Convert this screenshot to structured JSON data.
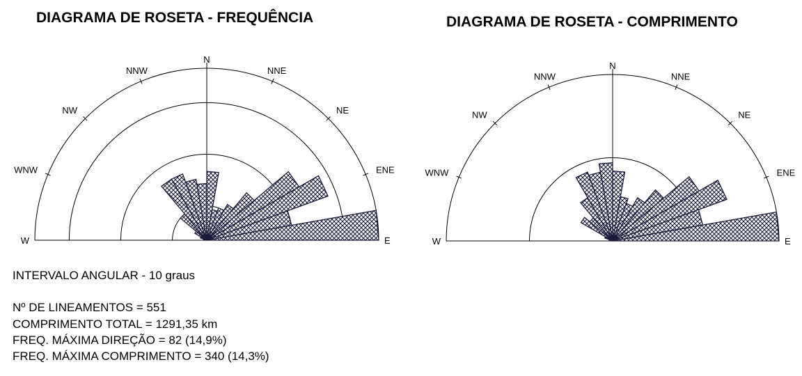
{
  "chart_data": [
    {
      "type": "rose",
      "title": "DIAGRAMA DE ROSETA - FREQUÊNCIA",
      "direction_labels": [
        "W",
        "WNW",
        "NW",
        "NNW",
        "N",
        "NNE",
        "NE",
        "ENE",
        "E"
      ],
      "bins_deg": [
        -90,
        -80,
        -70,
        -60,
        -50,
        -40,
        -30,
        -20,
        -10,
        0,
        10,
        20,
        30,
        40,
        50,
        60,
        70,
        80
      ],
      "bin_width_deg": 10,
      "rings": [
        0.2,
        0.5,
        0.8,
        1.0
      ],
      "values": [
        0.01,
        0.02,
        0.04,
        0.08,
        0.2,
        0.41,
        0.41,
        0.36,
        0.33,
        0.4,
        0.18,
        0.2,
        0.24,
        0.36,
        0.62,
        0.75,
        0.5,
        1.0
      ]
    },
    {
      "type": "rose",
      "title": "DIAGRAMA DE ROSETA - COMPRIMENTO",
      "direction_labels": [
        "W",
        "WNW",
        "NW",
        "NNW",
        "N",
        "NNE",
        "NE",
        "ENE",
        "E"
      ],
      "bins_deg": [
        -90,
        -80,
        -70,
        -60,
        -50,
        -40,
        -30,
        -20,
        -10,
        0,
        10,
        20,
        30,
        40,
        50,
        60,
        70,
        80
      ],
      "bin_width_deg": 10,
      "rings": [
        0.5,
        1.0
      ],
      "values": [
        0.01,
        0.02,
        0.05,
        0.22,
        0.18,
        0.3,
        0.44,
        0.42,
        0.47,
        0.42,
        0.27,
        0.24,
        0.3,
        0.4,
        0.6,
        0.73,
        0.55,
        1.0
      ]
    }
  ],
  "info": {
    "interval": "INTERVALO ANGULAR - 10 graus",
    "count": "Nº DE LINEAMENTOS = 551",
    "total_length": "COMPRIMENTO TOTAL = 1291,35 km",
    "max_freq_direction": "FREQ. MÁXIMA DIREÇÃO = 82 (14,9%)",
    "max_freq_length": "FREQ. MÁXIMA COMPRIMENTO = 340 (14,3%)"
  },
  "colors": {
    "ink": "#1a1a3a",
    "line": "#000000"
  }
}
